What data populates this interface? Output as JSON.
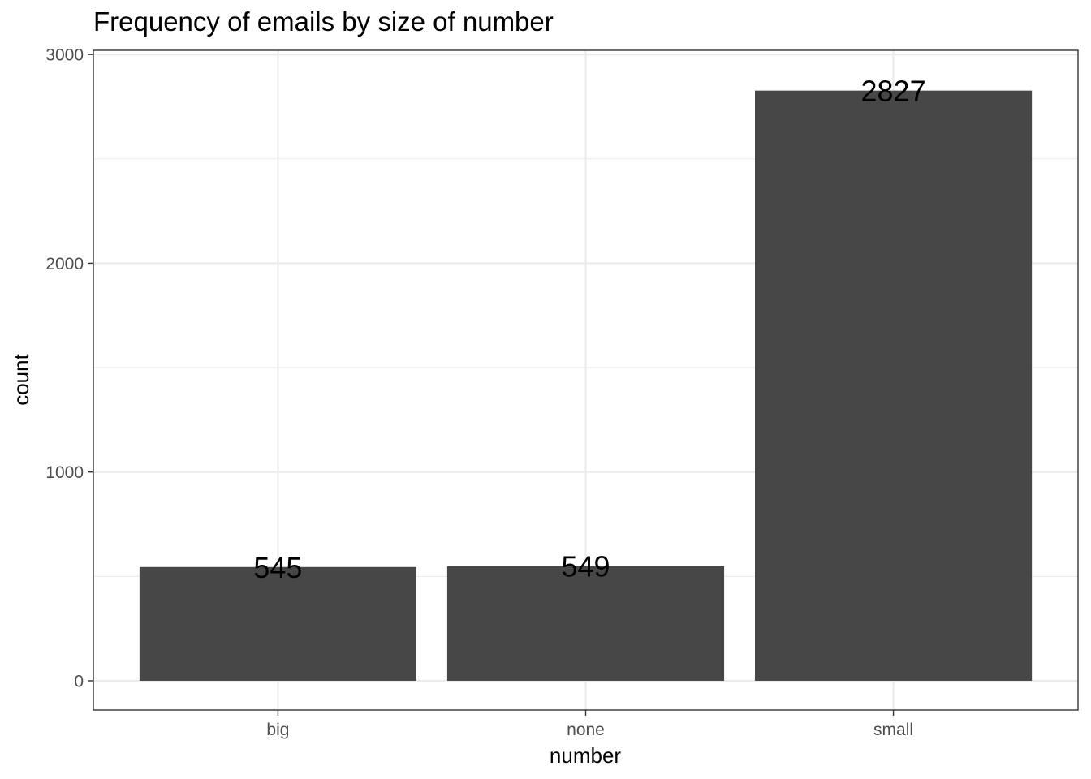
{
  "chart_data": {
    "type": "bar",
    "title": "Frequency of emails by size of number",
    "xlabel": "number",
    "ylabel": "count",
    "categories": [
      "big",
      "none",
      "small"
    ],
    "values": [
      545,
      549,
      2827
    ],
    "data_labels": [
      "545",
      "549",
      "2827"
    ],
    "ylim": [
      -140,
      3020
    ],
    "yticks": [
      0,
      1000,
      2000,
      3000
    ],
    "ytick_labels": [
      "0",
      "1000",
      "2000",
      "3000"
    ],
    "y_minor_ticks": [
      500,
      1500,
      2500
    ],
    "grid": true,
    "legend": "none",
    "bar_color": "#474747"
  }
}
